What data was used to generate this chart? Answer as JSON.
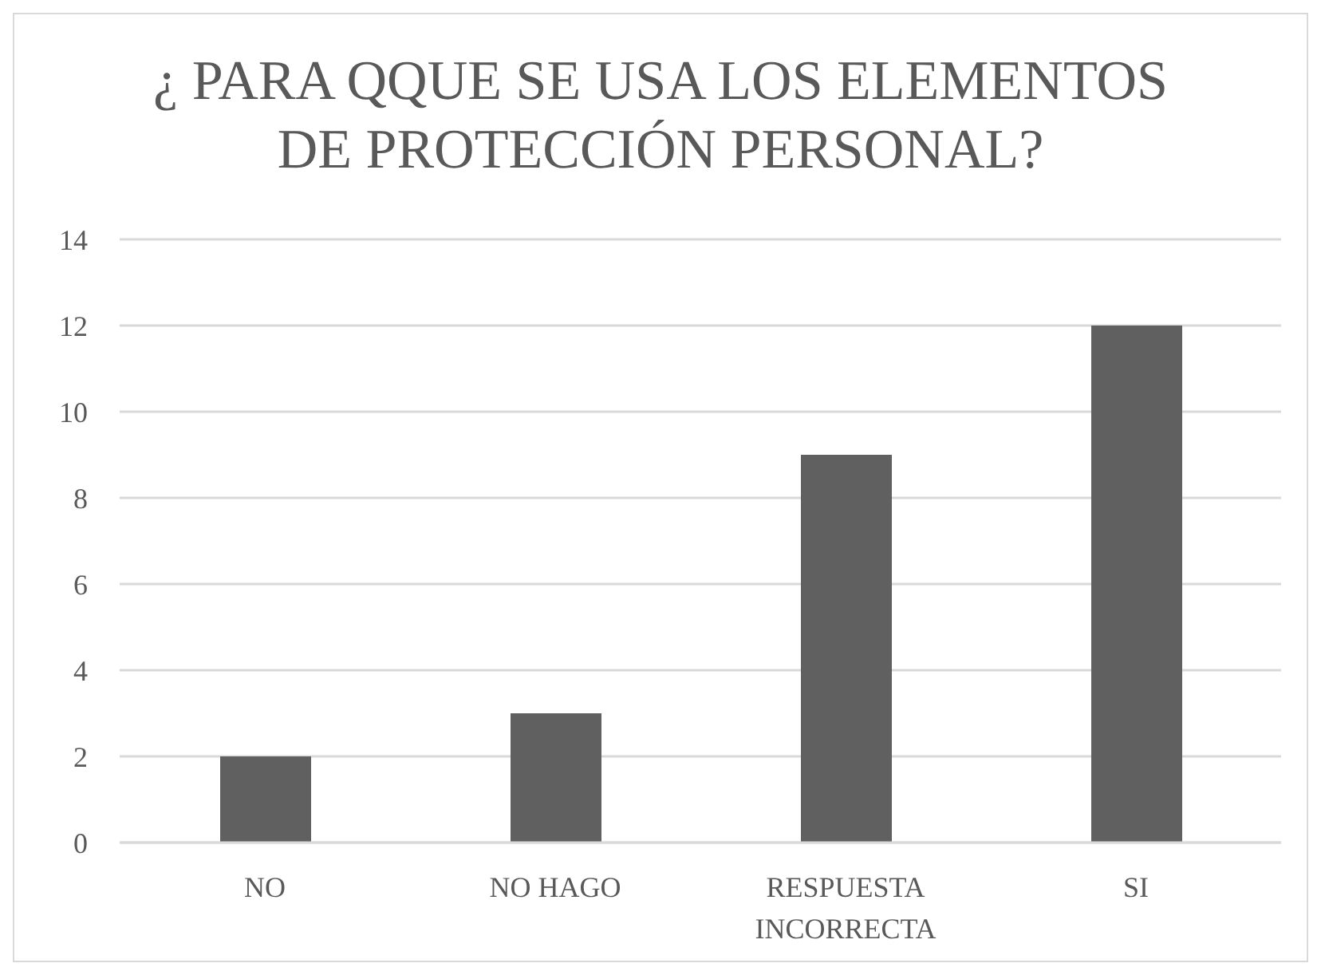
{
  "chart_data": {
    "type": "bar",
    "title": "¿ PARA QQUE SE USA LOS ELEMENTOS DE PROTECCIÓN PERSONAL?",
    "categories": [
      "NO",
      "NO HAGO",
      "RESPUESTA INCORRECTA",
      "SI"
    ],
    "values": [
      2,
      3,
      9,
      12
    ],
    "color": "#606060",
    "ylim": [
      0,
      14
    ],
    "yticks": [
      0,
      2,
      4,
      6,
      8,
      10,
      12,
      14
    ],
    "grid": "y"
  }
}
